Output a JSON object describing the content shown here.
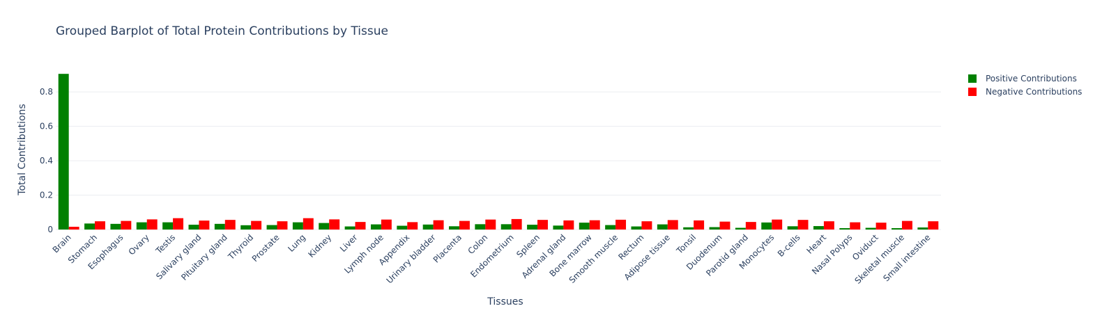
{
  "chart_data": {
    "type": "bar",
    "title": "Grouped Barplot of Total Protein Contributions by Tissue",
    "xlabel": "Tissues",
    "ylabel": "Total Contributions",
    "ylim": [
      0,
      0.93
    ],
    "yticks": [
      "0",
      "0.2",
      "0.4",
      "0.6",
      "0.8"
    ],
    "grid": true,
    "legend_position": "top-right",
    "categories": [
      "Brain",
      "Stomach",
      "Esophagus",
      "Ovary",
      "Testis",
      "Salivary gland",
      "Pituitary gland",
      "Thyroid",
      "Prostate",
      "Lung",
      "Kidney",
      "Liver",
      "Lymph node",
      "Appendix",
      "Urinary bladder",
      "Placenta",
      "Colon",
      "Endometrium",
      "Spleen",
      "Adrenal gland",
      "Bone marrow",
      "Smooth muscle",
      "Rectum",
      "Adipose tissue",
      "Tonsil",
      "Duodenum",
      "Parotid gland",
      "Monocytes",
      "B-cells",
      "Heart",
      "Nasal Polyps",
      "Oviduct",
      "Skeletal muscle",
      "Small intestine"
    ],
    "series": [
      {
        "name": "Positive Contributions",
        "color": "#008000",
        "values": [
          0.905,
          0.035,
          0.033,
          0.042,
          0.042,
          0.028,
          0.033,
          0.025,
          0.026,
          0.042,
          0.038,
          0.018,
          0.03,
          0.022,
          0.029,
          0.019,
          0.031,
          0.031,
          0.028,
          0.023,
          0.04,
          0.026,
          0.018,
          0.03,
          0.013,
          0.014,
          0.01,
          0.041,
          0.019,
          0.02,
          0.008,
          0.01,
          0.008,
          0.012
        ]
      },
      {
        "name": "Negative Contributions",
        "color": "#ff0000",
        "values": [
          0.016,
          0.048,
          0.05,
          0.059,
          0.066,
          0.052,
          0.056,
          0.05,
          0.048,
          0.066,
          0.059,
          0.044,
          0.058,
          0.043,
          0.054,
          0.05,
          0.058,
          0.061,
          0.056,
          0.053,
          0.054,
          0.057,
          0.048,
          0.055,
          0.053,
          0.046,
          0.044,
          0.058,
          0.056,
          0.048,
          0.042,
          0.04,
          0.05,
          0.048
        ]
      }
    ]
  }
}
